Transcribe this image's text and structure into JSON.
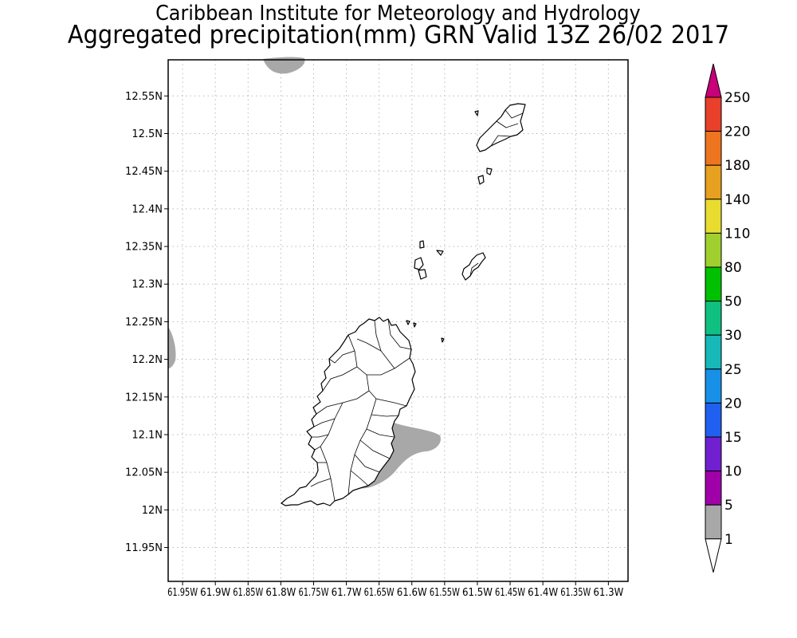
{
  "title": {
    "line1": "Caribbean Institute for Meteorology and Hydrology",
    "line2": "Aggregated precipitation(mm) GRN Valid 13Z 26/02 2017"
  },
  "map": {
    "lon_range": [
      -61.972,
      -61.27
    ],
    "lat_range": [
      11.905,
      12.598
    ],
    "lat_ticks": [
      {
        "value": 12.55,
        "label": "12.55N"
      },
      {
        "value": 12.5,
        "label": "12.5N"
      },
      {
        "value": 12.45,
        "label": "12.45N"
      },
      {
        "value": 12.4,
        "label": "12.4N"
      },
      {
        "value": 12.35,
        "label": "12.35N"
      },
      {
        "value": 12.3,
        "label": "12.3N"
      },
      {
        "value": 12.25,
        "label": "12.25N"
      },
      {
        "value": 12.2,
        "label": "12.2N"
      },
      {
        "value": 12.15,
        "label": "12.15N"
      },
      {
        "value": 12.1,
        "label": "12.1N"
      },
      {
        "value": 12.05,
        "label": "12.05N"
      },
      {
        "value": 12.0,
        "label": "12N"
      },
      {
        "value": 11.95,
        "label": "11.95N"
      }
    ],
    "lon_ticks": [
      {
        "value": -61.95,
        "label": "61.95W"
      },
      {
        "value": -61.9,
        "label": "61.9W"
      },
      {
        "value": -61.85,
        "label": "61.85W"
      },
      {
        "value": -61.8,
        "label": "61.8W"
      },
      {
        "value": -61.75,
        "label": "61.75W"
      },
      {
        "value": -61.7,
        "label": "61.7W"
      },
      {
        "value": -61.65,
        "label": "61.65W"
      },
      {
        "value": -61.6,
        "label": "61.6W"
      },
      {
        "value": -61.55,
        "label": "61.55W"
      },
      {
        "value": -61.5,
        "label": "61.5W"
      },
      {
        "value": -61.45,
        "label": "61.45W"
      },
      {
        "value": -61.4,
        "label": "61.4W"
      },
      {
        "value": -61.35,
        "label": "61.35W"
      },
      {
        "value": -61.3,
        "label": "61.3W"
      }
    ],
    "grid": "dotted",
    "precip_areas": [
      {
        "name": "north-top-patch",
        "class": "1-5"
      },
      {
        "name": "west-edge-patch",
        "class": "1-5"
      },
      {
        "name": "grenada-southeast-patch",
        "class": "1-5"
      }
    ],
    "land": [
      "Grenada",
      "Carriacou",
      "Petite Martinique",
      "small islets"
    ]
  },
  "colorbar": {
    "labels": [
      "250",
      "220",
      "180",
      "140",
      "110",
      "80",
      "50",
      "30",
      "25",
      "20",
      "15",
      "10",
      "5",
      "1"
    ],
    "colors": [
      "#c8007a",
      "#e8402a",
      "#ee7520",
      "#e8a020",
      "#e8dc30",
      "#a0d030",
      "#00c000",
      "#10c080",
      "#18b8b8",
      "#1890e8",
      "#2060f0",
      "#7020d0",
      "#a000a8",
      "#a8a8a8",
      "#ffffff"
    ]
  }
}
